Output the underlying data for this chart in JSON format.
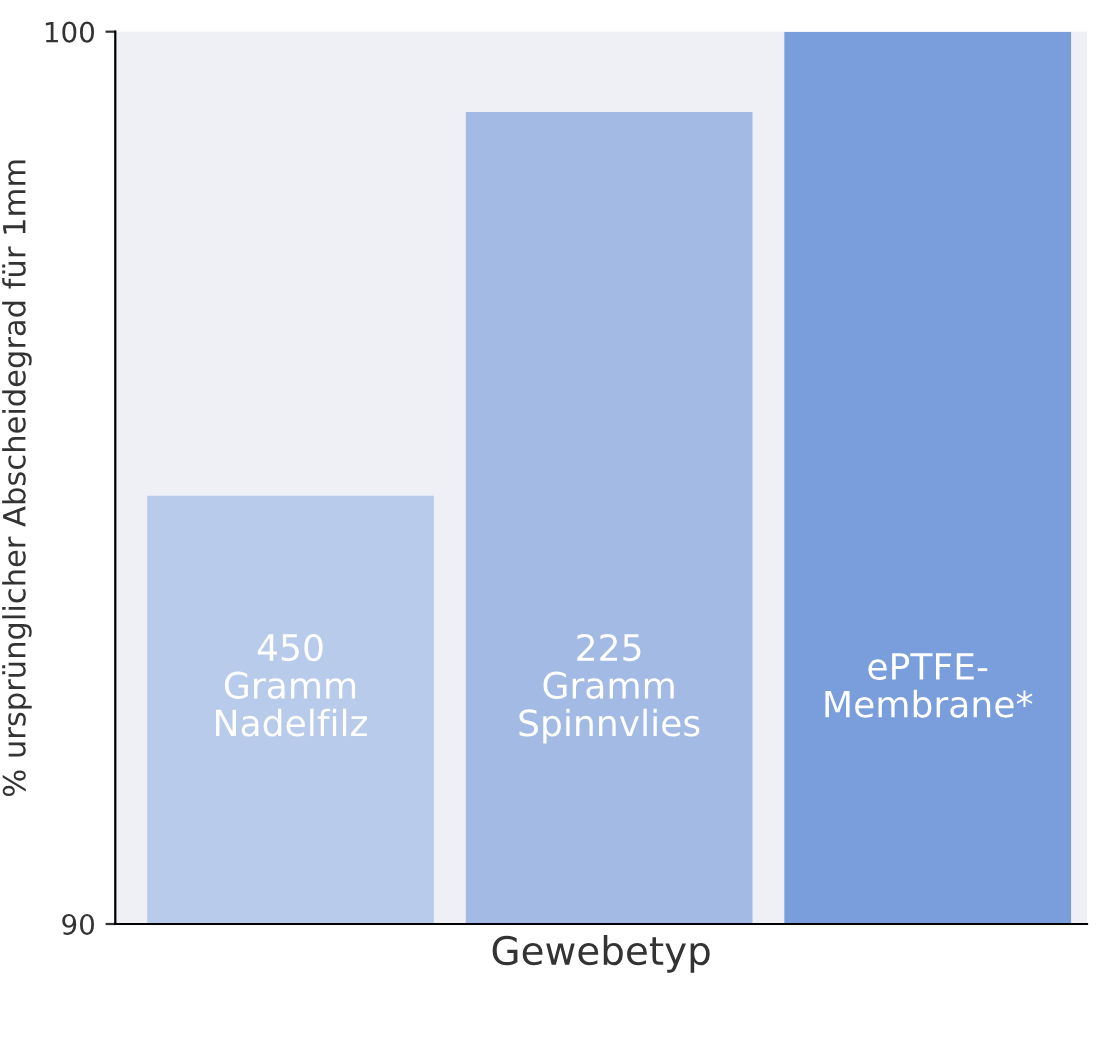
{
  "chart_data": {
    "type": "bar",
    "xlabel": "Gewebetyp",
    "ylabel": "% ursprünglicher Abscheidegrad für 1mm",
    "categories": [
      "450\nGramm\nNadelfilz",
      "225\nGramm\nSpinnvlies",
      "ePTFE-\nMembrane*"
    ],
    "values": [
      94.8,
      99.1,
      100
    ],
    "colors": [
      "#b9cbea",
      "#a3bae4",
      "#7a9edb"
    ],
    "ylim": [
      90,
      100
    ],
    "yticks": [
      90,
      100
    ],
    "grid": false
  }
}
